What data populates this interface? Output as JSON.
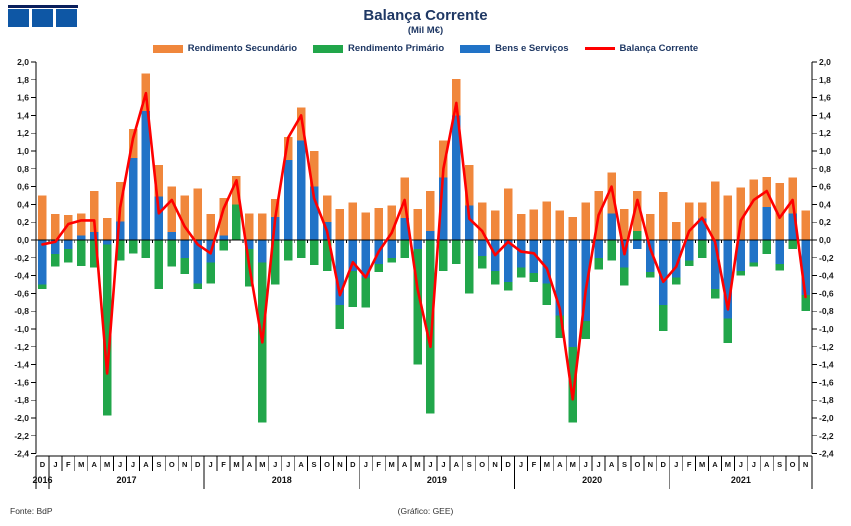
{
  "header": {
    "title": "Balança Corrente",
    "subtitle": "(Mil M€)"
  },
  "legend": [
    {
      "label": "Rendimento Secundário",
      "color": "#F0873C",
      "type": "bar"
    },
    {
      "label": "Rendimento Primário",
      "color": "#21A64A",
      "type": "bar"
    },
    {
      "label": "Bens e Serviços",
      "color": "#2173C7",
      "type": "bar"
    },
    {
      "label": "Balança Corrente",
      "color": "#FF0000",
      "type": "line"
    }
  ],
  "footer": {
    "source": "Fonte: BdP",
    "credit": "(Gráfico: GEE)"
  },
  "logo": {
    "bar_color": "#0A1F5C",
    "square_color": "#0E57A5",
    "squares": 3
  },
  "chart_data": {
    "type": "bar",
    "subtype": "stacked-bar-with-line",
    "title": "Balança Corrente",
    "unit": "Mil M€",
    "legend_position": "top",
    "ylim": [
      -2.4,
      2.0
    ],
    "ytick_step": 0.2,
    "ytick_labels": [
      "2,0",
      "1,8",
      "1,6",
      "1,4",
      "1,2",
      "1,0",
      "0,8",
      "0,6",
      "0,4",
      "0,2",
      "0,0",
      "-0,2",
      "-0,4",
      "-0,6",
      "-0,8",
      "-1,0",
      "-1,2",
      "-1,4",
      "-1,6",
      "-1,8",
      "-2,0",
      "-2,2",
      "-2,4"
    ],
    "months": [
      "D",
      "J",
      "F",
      "M",
      "A",
      "M",
      "J",
      "J",
      "A",
      "S",
      "O",
      "N",
      "D",
      "J",
      "F",
      "M",
      "A",
      "M",
      "J",
      "J",
      "A",
      "S",
      "O",
      "N",
      "D",
      "J",
      "F",
      "M",
      "A",
      "M",
      "J",
      "J",
      "A",
      "S",
      "O",
      "N",
      "D",
      "J",
      "F",
      "M",
      "A",
      "M",
      "J",
      "J",
      "A",
      "S",
      "O",
      "N",
      "D",
      "J",
      "F",
      "M",
      "A",
      "M",
      "J",
      "J",
      "A",
      "S",
      "O",
      "N"
    ],
    "year_groups": [
      {
        "label": "2016",
        "months": 1
      },
      {
        "label": "2017",
        "months": 12
      },
      {
        "label": "2018",
        "months": 12
      },
      {
        "label": "2019",
        "months": 12
      },
      {
        "label": "2020",
        "months": 12
      },
      {
        "label": "2021",
        "months": 11
      }
    ],
    "stack_order": [
      2,
      1,
      0
    ],
    "series": [
      {
        "name": "Rendimento Secundário",
        "type": "bar",
        "color": "#F0873C",
        "values": [
          0.5,
          0.29,
          0.28,
          0.25,
          0.46,
          0.25,
          0.44,
          0.33,
          0.42,
          0.35,
          0.51,
          0.5,
          0.58,
          0.29,
          0.42,
          0.32,
          0.3,
          0.3,
          0.2,
          0.26,
          0.37,
          0.4,
          0.3,
          0.35,
          0.42,
          0.31,
          0.36,
          0.39,
          0.45,
          0.35,
          0.45,
          0.42,
          0.41,
          0.45,
          0.42,
          0.33,
          0.58,
          0.29,
          0.34,
          0.43,
          0.33,
          0.26,
          0.42,
          0.55,
          0.46,
          0.35,
          0.45,
          0.29,
          0.54,
          0.2,
          0.42,
          0.18,
          0.66,
          0.5,
          0.59,
          0.68,
          0.34,
          0.64,
          0.4,
          0.33
        ]
      },
      {
        "name": "Rendimento Primário",
        "type": "bar",
        "color": "#21A64A",
        "values": [
          -0.05,
          -0.14,
          -0.15,
          -0.29,
          -0.31,
          -1.92,
          -0.23,
          -0.15,
          -0.2,
          -0.55,
          -0.3,
          -0.18,
          -0.06,
          -0.24,
          -0.12,
          0.4,
          -0.42,
          -1.8,
          -0.5,
          -0.23,
          -0.2,
          -0.28,
          -0.35,
          -0.27,
          -0.4,
          -0.34,
          -0.09,
          -0.05,
          -0.2,
          -1.3,
          -1.95,
          -0.35,
          -0.27,
          -0.6,
          -0.14,
          -0.15,
          -0.1,
          -0.11,
          -0.1,
          -0.24,
          -0.25,
          -0.85,
          -0.2,
          -0.13,
          -0.23,
          -0.2,
          0.1,
          -0.06,
          -0.29,
          -0.08,
          -0.06,
          -0.2,
          -0.11,
          -0.28,
          -0.05,
          -0.05,
          -0.16,
          -0.07,
          -0.1,
          -0.18
        ]
      },
      {
        "name": "Bens e Serviços",
        "type": "bar",
        "color": "#2173C7",
        "values": [
          -0.5,
          -0.16,
          -0.1,
          0.05,
          0.09,
          -0.05,
          0.21,
          0.92,
          1.45,
          0.49,
          0.09,
          -0.2,
          -0.49,
          -0.25,
          0.05,
          0.0,
          -0.1,
          -0.25,
          0.26,
          0.9,
          1.12,
          0.6,
          0.2,
          -0.73,
          -0.35,
          -0.42,
          -0.27,
          -0.2,
          0.25,
          -0.1,
          0.1,
          0.7,
          1.4,
          0.39,
          -0.18,
          -0.35,
          -0.47,
          -0.31,
          -0.37,
          -0.49,
          -0.85,
          -1.2,
          -0.91,
          -0.2,
          0.3,
          -0.31,
          -0.1,
          -0.36,
          -0.73,
          -0.42,
          -0.23,
          0.24,
          -0.55,
          -0.88,
          -0.35,
          -0.25,
          0.37,
          -0.27,
          0.3,
          -0.62
        ]
      },
      {
        "name": "Balança Corrente",
        "type": "line",
        "color": "#FF0000",
        "values": [
          -0.05,
          -0.02,
          0.18,
          0.22,
          0.22,
          -1.5,
          0.36,
          1.14,
          1.65,
          0.3,
          0.45,
          0.15,
          -0.05,
          -0.15,
          0.35,
          0.67,
          -0.3,
          -1.15,
          0.25,
          1.15,
          1.4,
          0.47,
          0.1,
          -0.62,
          -0.25,
          -0.42,
          -0.13,
          0.08,
          0.45,
          -0.55,
          -1.2,
          0.8,
          1.54,
          0.24,
          0.1,
          -0.17,
          -0.02,
          -0.13,
          -0.15,
          -0.32,
          -0.77,
          -1.79,
          -0.57,
          0.28,
          0.6,
          -0.16,
          0.45,
          -0.1,
          -0.47,
          -0.3,
          0.1,
          0.25,
          -0.02,
          -0.78,
          0.22,
          0.45,
          0.55,
          0.25,
          0.45,
          -0.64
        ]
      }
    ]
  }
}
